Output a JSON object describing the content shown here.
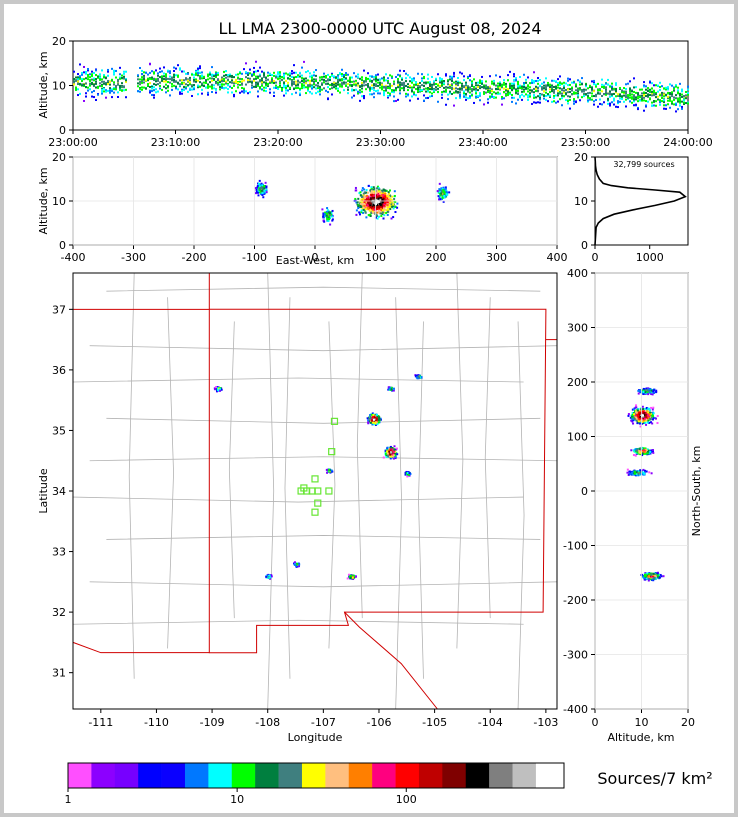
{
  "title": "LL LMA 2300-0000 UTC August 08, 2024",
  "colorbar_label": "Sources/7 km²",
  "source_count": "32,799 sources",
  "colorbar": {
    "colors": [
      "#ff4fff",
      "#8c00ff",
      "#7700ff",
      "#0000ff",
      "#0a00ff",
      "#0078ff",
      "#00ffff",
      "#00ff00",
      "#007f3f",
      "#3f7f7f",
      "#ffff00",
      "#ffbf7f",
      "#ff7f00",
      "#ff007f",
      "#ff0000",
      "#bf0000",
      "#7f0000",
      "#000000",
      "#7f7f7f",
      "#bfbfbf",
      "#ffffff"
    ],
    "ticks": [
      "1",
      "10",
      "100"
    ]
  },
  "chart_data": [
    {
      "type": "scatter",
      "panel": "time-altitude",
      "ylabel": "Altitude, km",
      "xlabel": "",
      "x_ticks": [
        "23:00:00",
        "23:10:00",
        "23:20:00",
        "23:30:00",
        "23:40:00",
        "23:50:00",
        "24:00:00"
      ],
      "xlim": [
        "23:00:00",
        "24:00:00"
      ],
      "ylim": [
        0,
        20
      ],
      "y_ticks": [
        "0",
        "10",
        "20"
      ],
      "description_points": [
        {
          "t": 2,
          "y": 10.5
        },
        {
          "t": 10,
          "y": 11
        },
        {
          "t": 18,
          "y": 11
        },
        {
          "t": 25,
          "y": 10.5
        },
        {
          "t": 32,
          "y": 10
        },
        {
          "t": 38,
          "y": 9.5
        },
        {
          "t": 45,
          "y": 9
        },
        {
          "t": 52,
          "y": 8.5
        },
        {
          "t": 58,
          "y": 7.5
        }
      ]
    },
    {
      "type": "scatter",
      "panel": "east-west-altitude",
      "xlabel": "East-West, km",
      "ylabel": "Altitude, km",
      "xlim": [
        -400,
        400
      ],
      "ylim": [
        0,
        20
      ],
      "x_ticks": [
        "-400",
        "-300",
        "-200",
        "-100",
        "0",
        "100",
        "200",
        "300",
        "400"
      ],
      "y_ticks": [
        "0",
        "10",
        "20"
      ],
      "clusters": [
        {
          "x": 100,
          "y": 10,
          "peak": "high"
        },
        {
          "x": -90,
          "y": 13,
          "peak": "low"
        },
        {
          "x": 20,
          "y": 7,
          "peak": "low"
        },
        {
          "x": 210,
          "y": 12,
          "peak": "low"
        }
      ]
    },
    {
      "type": "line",
      "panel": "altitude-histogram",
      "xlim": [
        0,
        1700
      ],
      "ylim": [
        0,
        20
      ],
      "x_ticks": [
        "0",
        "1000"
      ],
      "y_ticks": [
        "0",
        "10",
        "20"
      ],
      "x": [
        0,
        20,
        60,
        150,
        350,
        700,
        1100,
        1450,
        1650,
        1550,
        1100,
        600,
        300,
        150,
        80,
        40,
        20,
        10,
        5,
        0
      ],
      "y": [
        0,
        4,
        5,
        6,
        7,
        8,
        9,
        10,
        11,
        12,
        12.5,
        13,
        13.5,
        14,
        15,
        16,
        17,
        18,
        19,
        20
      ]
    },
    {
      "type": "scatter",
      "panel": "plan-view",
      "xlabel": "Longitude",
      "ylabel": "Latitude",
      "xlim": [
        -111.5,
        -102.8
      ],
      "ylim": [
        30.4,
        37.6
      ],
      "x_ticks": [
        "-111",
        "-110",
        "-109",
        "-108",
        "-107",
        "-106",
        "-105",
        "-104",
        "-103"
      ],
      "y_ticks": [
        "31",
        "32",
        "33",
        "34",
        "35",
        "36",
        "37"
      ],
      "clusters": [
        {
          "lon": -106.1,
          "lat": 35.2,
          "peak": "high"
        },
        {
          "lon": -105.8,
          "lat": 34.65,
          "peak": "high"
        },
        {
          "lon": -105.8,
          "lat": 35.7,
          "peak": "low"
        },
        {
          "lon": -106.5,
          "lat": 32.6,
          "peak": "mid"
        },
        {
          "lon": -105.3,
          "lat": 35.9,
          "peak": "low"
        },
        {
          "lon": -108.0,
          "lat": 32.6,
          "peak": "low"
        },
        {
          "lon": -107.5,
          "lat": 32.8,
          "peak": "low"
        },
        {
          "lon": -108.9,
          "lat": 35.7,
          "peak": "low"
        },
        {
          "lon": -106.9,
          "lat": 34.35,
          "peak": "low"
        },
        {
          "lon": -105.5,
          "lat": 34.3,
          "peak": "low"
        }
      ],
      "stations": [
        {
          "lon": -106.8,
          "lat": 35.15
        },
        {
          "lon": -106.85,
          "lat": 34.65
        },
        {
          "lon": -107.15,
          "lat": 34.2
        },
        {
          "lon": -107.35,
          "lat": 34.05
        },
        {
          "lon": -107.4,
          "lat": 34.0
        },
        {
          "lon": -107.2,
          "lat": 34.0
        },
        {
          "lon": -107.1,
          "lat": 34.0
        },
        {
          "lon": -107.1,
          "lat": 33.8
        },
        {
          "lon": -106.9,
          "lat": 34.0
        },
        {
          "lon": -107.15,
          "lat": 33.65
        },
        {
          "lon": -107.3,
          "lat": 34.0
        }
      ]
    },
    {
      "type": "scatter",
      "panel": "altitude-north-south",
      "xlabel": "Altitude, km",
      "ylabel": "North-South, km",
      "xlim": [
        0,
        20
      ],
      "ylim": [
        -400,
        400
      ],
      "x_ticks": [
        "0",
        "10",
        "20"
      ],
      "y_ticks": [
        "-400",
        "-300",
        "-200",
        "-100",
        "0",
        "100",
        "200",
        "300",
        "400"
      ],
      "clusters": [
        {
          "alt": 10,
          "ns": 140,
          "peak": "high"
        },
        {
          "alt": 10,
          "ns": 75,
          "peak": "mid"
        },
        {
          "alt": 11,
          "ns": 185,
          "peak": "low"
        },
        {
          "alt": 9,
          "ns": 35,
          "peak": "low"
        },
        {
          "alt": 12,
          "ns": -155,
          "peak": "mid"
        }
      ]
    }
  ]
}
